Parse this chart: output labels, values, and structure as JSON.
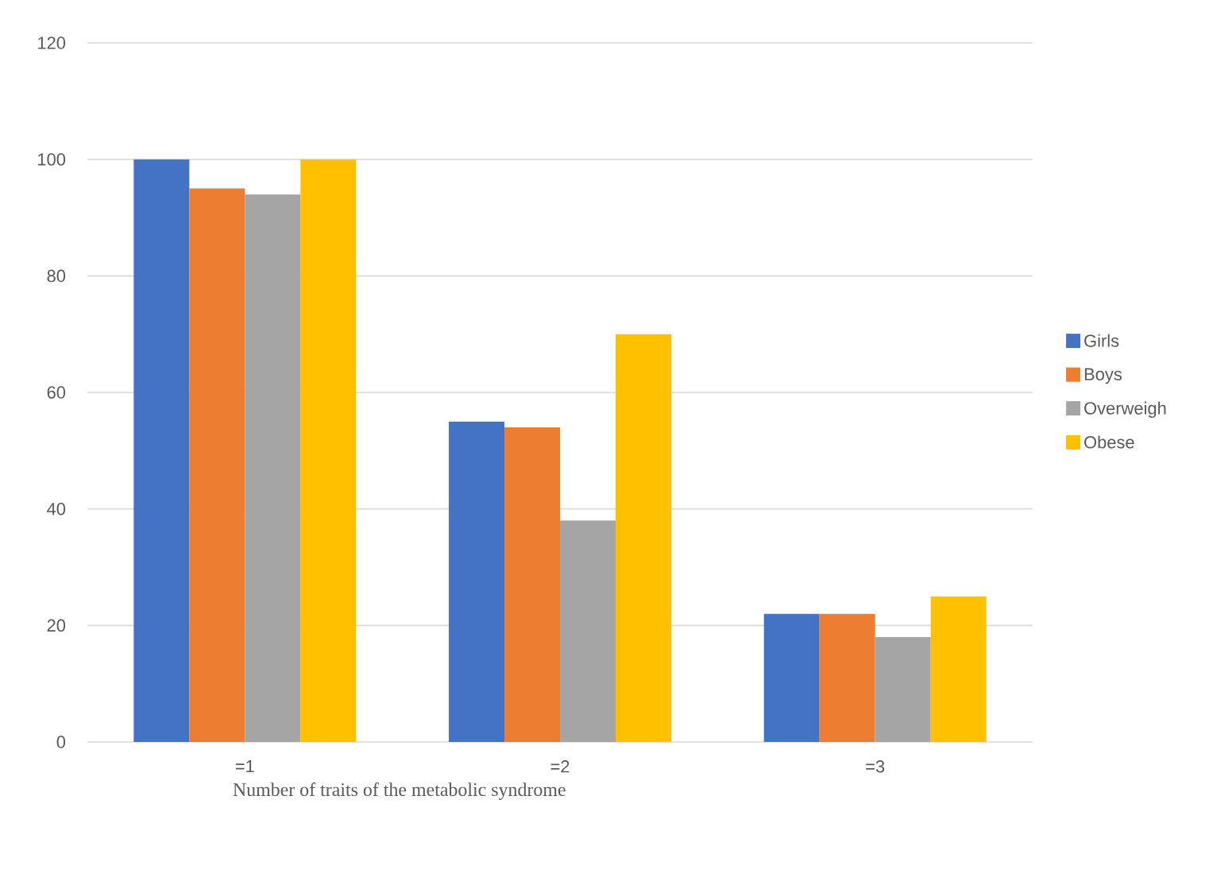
{
  "chart_data": {
    "type": "bar",
    "xlabel": "Number of traits of the metabolic syndrome",
    "categories": [
      "=1",
      "=2",
      "=3"
    ],
    "series": [
      {
        "name": "Girls",
        "color": "#4472c4",
        "values": [
          100,
          55,
          22
        ]
      },
      {
        "name": "Boys",
        "color": "#ed7d31",
        "values": [
          95,
          54,
          22
        ]
      },
      {
        "name": "Overweigh",
        "color": "#a5a5a5",
        "values": [
          94,
          38,
          18
        ]
      },
      {
        "name": "Obese",
        "color": "#ffc000",
        "values": [
          100,
          70,
          25
        ]
      }
    ],
    "ylim": [
      0,
      120
    ],
    "yticks": [
      0,
      20,
      40,
      60,
      80,
      100,
      120
    ],
    "grid": "y",
    "legend": "right"
  }
}
